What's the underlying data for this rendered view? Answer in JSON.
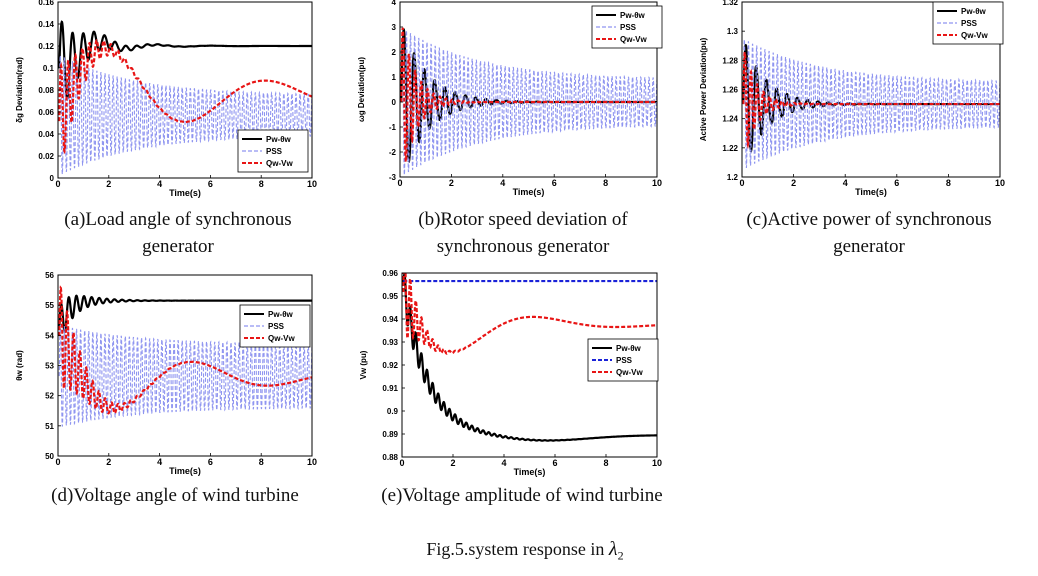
{
  "colors": {
    "pwtheta": "#000000",
    "pss": "#8f95f0",
    "pss_e": "#1a22d8",
    "qv": "#e81515"
  },
  "legend_labels": {
    "pwtheta": "Pw-θw",
    "pss": "PSS",
    "qv": "Qw-Vw"
  },
  "chart_data": [
    {
      "id": "a",
      "type": "line",
      "caption": "(a)Load angle of synchronous generator",
      "xlabel": "Time(s)",
      "ylabel": "δg Deviation(rad)",
      "xlim": [
        0,
        10
      ],
      "ylim": [
        0,
        0.16
      ],
      "xticks": [
        0,
        2,
        4,
        6,
        8,
        10
      ],
      "yticks": [
        0,
        0.02,
        0.04,
        0.06,
        0.08,
        0.1,
        0.12,
        0.14,
        0.16
      ],
      "ytick_labels": [
        "0",
        "0.02",
        "0.04",
        "0.06",
        "0.08",
        "0.1",
        "0.12",
        "0.14",
        "0.16"
      ],
      "legend": "bottom-right",
      "series": [
        {
          "name": "Pw-θw",
          "type": "damped_oscillation",
          "x0": 0.05,
          "start": 0.1,
          "final": 0.12,
          "amp": 0.045,
          "tau": 0.9,
          "period": 0.42,
          "slow_amp": -0.012,
          "slow_tau": 1.6
        },
        {
          "name": "PSS",
          "type": "osc_band",
          "x0": 0.05,
          "mean": 0.057,
          "amp0": 0.055,
          "amp1": 0.018,
          "period": 0.16
        },
        {
          "name": "Qw-Vw",
          "type": "oscillation_with_swing",
          "x0": 0.05,
          "base": 0.075,
          "fast_amp": 0.05,
          "fast_tau": 0.9,
          "fast_period": 0.28,
          "swing_amp": 0.06,
          "swing_period": 6.3,
          "swing_tau": 5.5,
          "swing_phase": 0.4
        }
      ]
    },
    {
      "id": "b",
      "type": "line",
      "caption": "(b)Rotor speed deviation of synchronous generator",
      "xlabel": "Time(s)",
      "ylabel": "ωg Deviation(pu)",
      "xlim": [
        0,
        10
      ],
      "ylim": [
        -3,
        4
      ],
      "xticks": [
        0,
        2,
        4,
        6,
        8,
        10
      ],
      "yticks": [
        -3,
        -2,
        -1,
        0,
        1,
        2,
        3,
        4
      ],
      "ytick_labels": [
        "-3",
        "-2",
        "-1",
        "0",
        "1",
        "2",
        "3",
        "4"
      ],
      "legend": "top-right",
      "series": [
        {
          "name": "Pw-θw",
          "type": "damped_oscillation",
          "x0": 0.05,
          "start": 0,
          "final": 0,
          "amp": 3.2,
          "tau": 1.0,
          "period": 0.4
        },
        {
          "name": "PSS",
          "type": "osc_band",
          "x0": 0.05,
          "mean": 0,
          "amp0": 3.0,
          "amp1": 0.9,
          "period": 0.16
        },
        {
          "name": "Qw-Vw",
          "type": "damped_oscillation",
          "x0": 0.05,
          "start": 0,
          "final": 0,
          "amp": 3.3,
          "tau": 0.55,
          "period": 0.24
        }
      ]
    },
    {
      "id": "c",
      "type": "line",
      "caption": "(c)Active power of synchronous generator",
      "xlabel": "Time(s)",
      "ylabel": "Active Power Deviation(pu)",
      "xlim": [
        0,
        10
      ],
      "ylim": [
        1.2,
        1.32
      ],
      "xticks": [
        0,
        2,
        4,
        6,
        8,
        10
      ],
      "yticks": [
        1.2,
        1.22,
        1.24,
        1.26,
        1.28,
        1.3,
        1.32
      ],
      "ytick_labels": [
        "1.2",
        "1.22",
        "1.24",
        "1.26",
        "1.28",
        "1.3",
        "1.32"
      ],
      "legend": "top-right",
      "series": [
        {
          "name": "Pw-θw",
          "type": "damped_oscillation",
          "x0": 0.05,
          "start": 1.25,
          "final": 1.25,
          "amp": 0.045,
          "tau": 0.9,
          "period": 0.4
        },
        {
          "name": "PSS",
          "type": "osc_band",
          "x0": 0.05,
          "mean": 1.25,
          "amp0": 0.045,
          "amp1": 0.015,
          "period": 0.16
        },
        {
          "name": "Qw-Vw",
          "type": "damped_oscillation",
          "x0": 0.05,
          "start": 1.25,
          "final": 1.25,
          "amp": 0.04,
          "tau": 0.5,
          "period": 0.24
        }
      ]
    },
    {
      "id": "d",
      "type": "line",
      "caption": "(d)Voltage angle of wind turbine",
      "xlabel": "Time(s)",
      "ylabel": "θw (rad)",
      "xlim": [
        0,
        10
      ],
      "ylim": [
        50,
        56
      ],
      "xticks": [
        0,
        2,
        4,
        6,
        8,
        10
      ],
      "yticks": [
        50,
        51,
        52,
        53,
        54,
        55,
        56
      ],
      "ytick_labels": [
        "50",
        "51",
        "52",
        "53",
        "54",
        "55",
        "56"
      ],
      "legend": "top-right",
      "series": [
        {
          "name": "Pw-θw",
          "type": "damped_oscillation",
          "x0": 0.05,
          "start": 54.2,
          "final": 55.15,
          "amp": 0.7,
          "tau": 0.8,
          "period": 0.3
        },
        {
          "name": "PSS",
          "type": "osc_band",
          "x0": 0.05,
          "mean": 52.65,
          "amp0": 1.7,
          "amp1": 1.05,
          "period": 0.16
        },
        {
          "name": "Qw-Vw",
          "type": "oscillation_with_swing",
          "x0": 0.05,
          "base": 52.6,
          "fast_amp": 1.8,
          "fast_tau": 0.9,
          "fast_period": 0.25,
          "swing_amp": -1.7,
          "swing_period": 6.0,
          "swing_tau": 4.5,
          "swing_phase": 0.9
        }
      ]
    },
    {
      "id": "e",
      "type": "line",
      "caption": "(e)Voltage amplitude of wind turbine",
      "xlabel": "Time(s)",
      "ylabel": "Vw (pu)",
      "xlim": [
        0,
        10
      ],
      "ylim": [
        0.88,
        0.96
      ],
      "xticks": [
        0,
        2,
        4,
        6,
        8,
        10
      ],
      "yticks": [
        0.88,
        0.89,
        0.9,
        0.91,
        0.92,
        0.93,
        0.94,
        0.95,
        0.96
      ],
      "ytick_labels": [
        "0.88",
        "0.89",
        "0.9",
        "0.91",
        "0.92",
        "0.93",
        "0.94",
        "0.95",
        "0.96"
      ],
      "legend": "center-right",
      "series": [
        {
          "name": "Pw-θw",
          "type": "exp_decay_osc",
          "x0": 0.05,
          "start": 0.955,
          "final": 0.8895,
          "tau": 0.95,
          "osc_amp": 0.008,
          "osc_tau": 1.3,
          "period": 0.22,
          "tail_dip": -0.0025,
          "tail_center": 5.5,
          "tail_width": 2.5
        },
        {
          "name": "PSS",
          "type": "constant",
          "x0": 0.05,
          "value": 0.9565
        },
        {
          "name": "Qw-Vw",
          "type": "oscillation_with_swing",
          "x0": 0.05,
          "base": 0.9375,
          "fast_amp": 0.022,
          "fast_tau": 0.5,
          "fast_period": 0.22,
          "swing_amp": -0.026,
          "swing_period": 6.5,
          "swing_tau": 2.6,
          "swing_phase": 0.6
        }
      ]
    }
  ],
  "figure_caption": {
    "text": "Fig.5.system response in",
    "symbol": "λ",
    "subscript": "2"
  }
}
